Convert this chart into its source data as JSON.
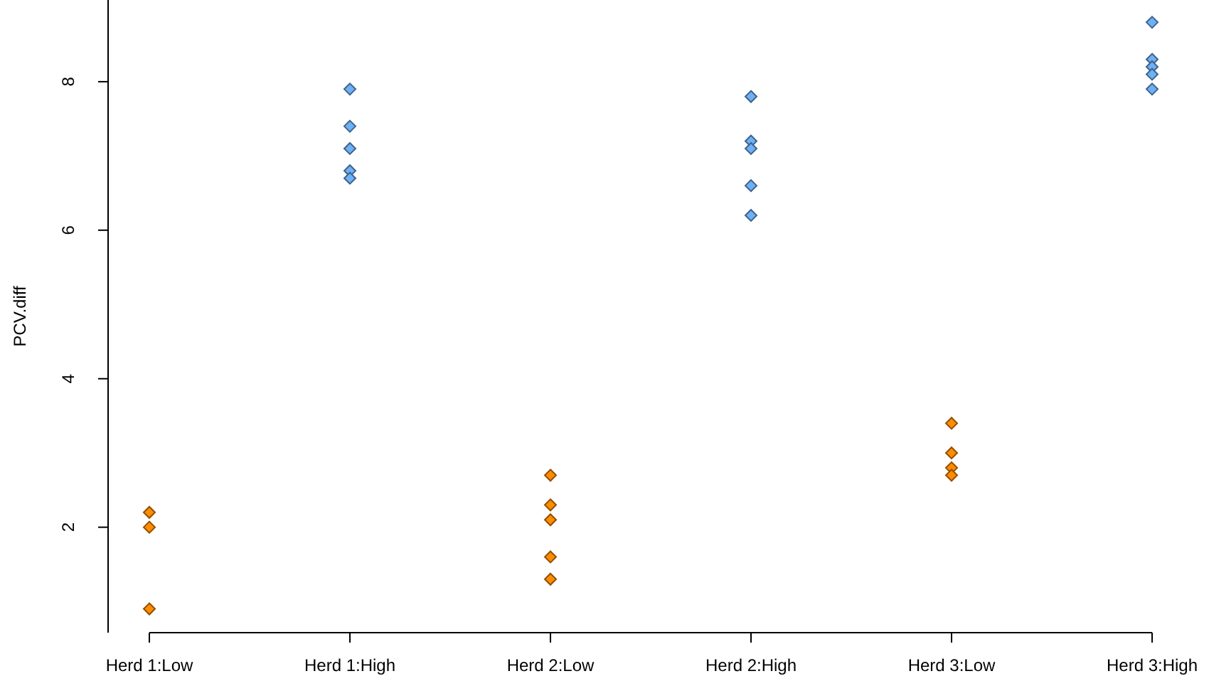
{
  "chart_data": {
    "type": "scatter",
    "ylabel": "PCV.diff",
    "categories": [
      "Herd 1:Low",
      "Herd 1:High",
      "Herd 2:Low",
      "Herd 2:High",
      "Herd 3:Low",
      "Herd 3:High"
    ],
    "ylim": [
      0.58,
      9.1
    ],
    "yticks": [
      2,
      4,
      6,
      8
    ],
    "grid": false,
    "marker": "diamond",
    "series": [
      {
        "color": "#ff8c00",
        "x": [
          "Herd 1:Low",
          "Herd 1:Low",
          "Herd 1:Low",
          "Herd 2:Low",
          "Herd 2:Low",
          "Herd 2:Low",
          "Herd 2:Low",
          "Herd 2:Low",
          "Herd 3:Low",
          "Herd 3:Low",
          "Herd 3:Low",
          "Herd 3:Low"
        ],
        "values": [
          2.2,
          2.0,
          0.9,
          2.7,
          2.3,
          2.1,
          1.6,
          1.3,
          3.4,
          3.0,
          2.8,
          2.7
        ]
      },
      {
        "color": "#6fb0f5",
        "x": [
          "Herd 1:High",
          "Herd 1:High",
          "Herd 1:High",
          "Herd 1:High",
          "Herd 1:High",
          "Herd 2:High",
          "Herd 2:High",
          "Herd 2:High",
          "Herd 2:High",
          "Herd 2:High",
          "Herd 3:High",
          "Herd 3:High",
          "Herd 3:High",
          "Herd 3:High",
          "Herd 3:High"
        ],
        "values": [
          7.9,
          7.4,
          7.1,
          6.8,
          6.7,
          7.8,
          7.2,
          7.1,
          6.6,
          6.2,
          8.8,
          8.3,
          8.2,
          8.1,
          7.9
        ]
      }
    ]
  }
}
